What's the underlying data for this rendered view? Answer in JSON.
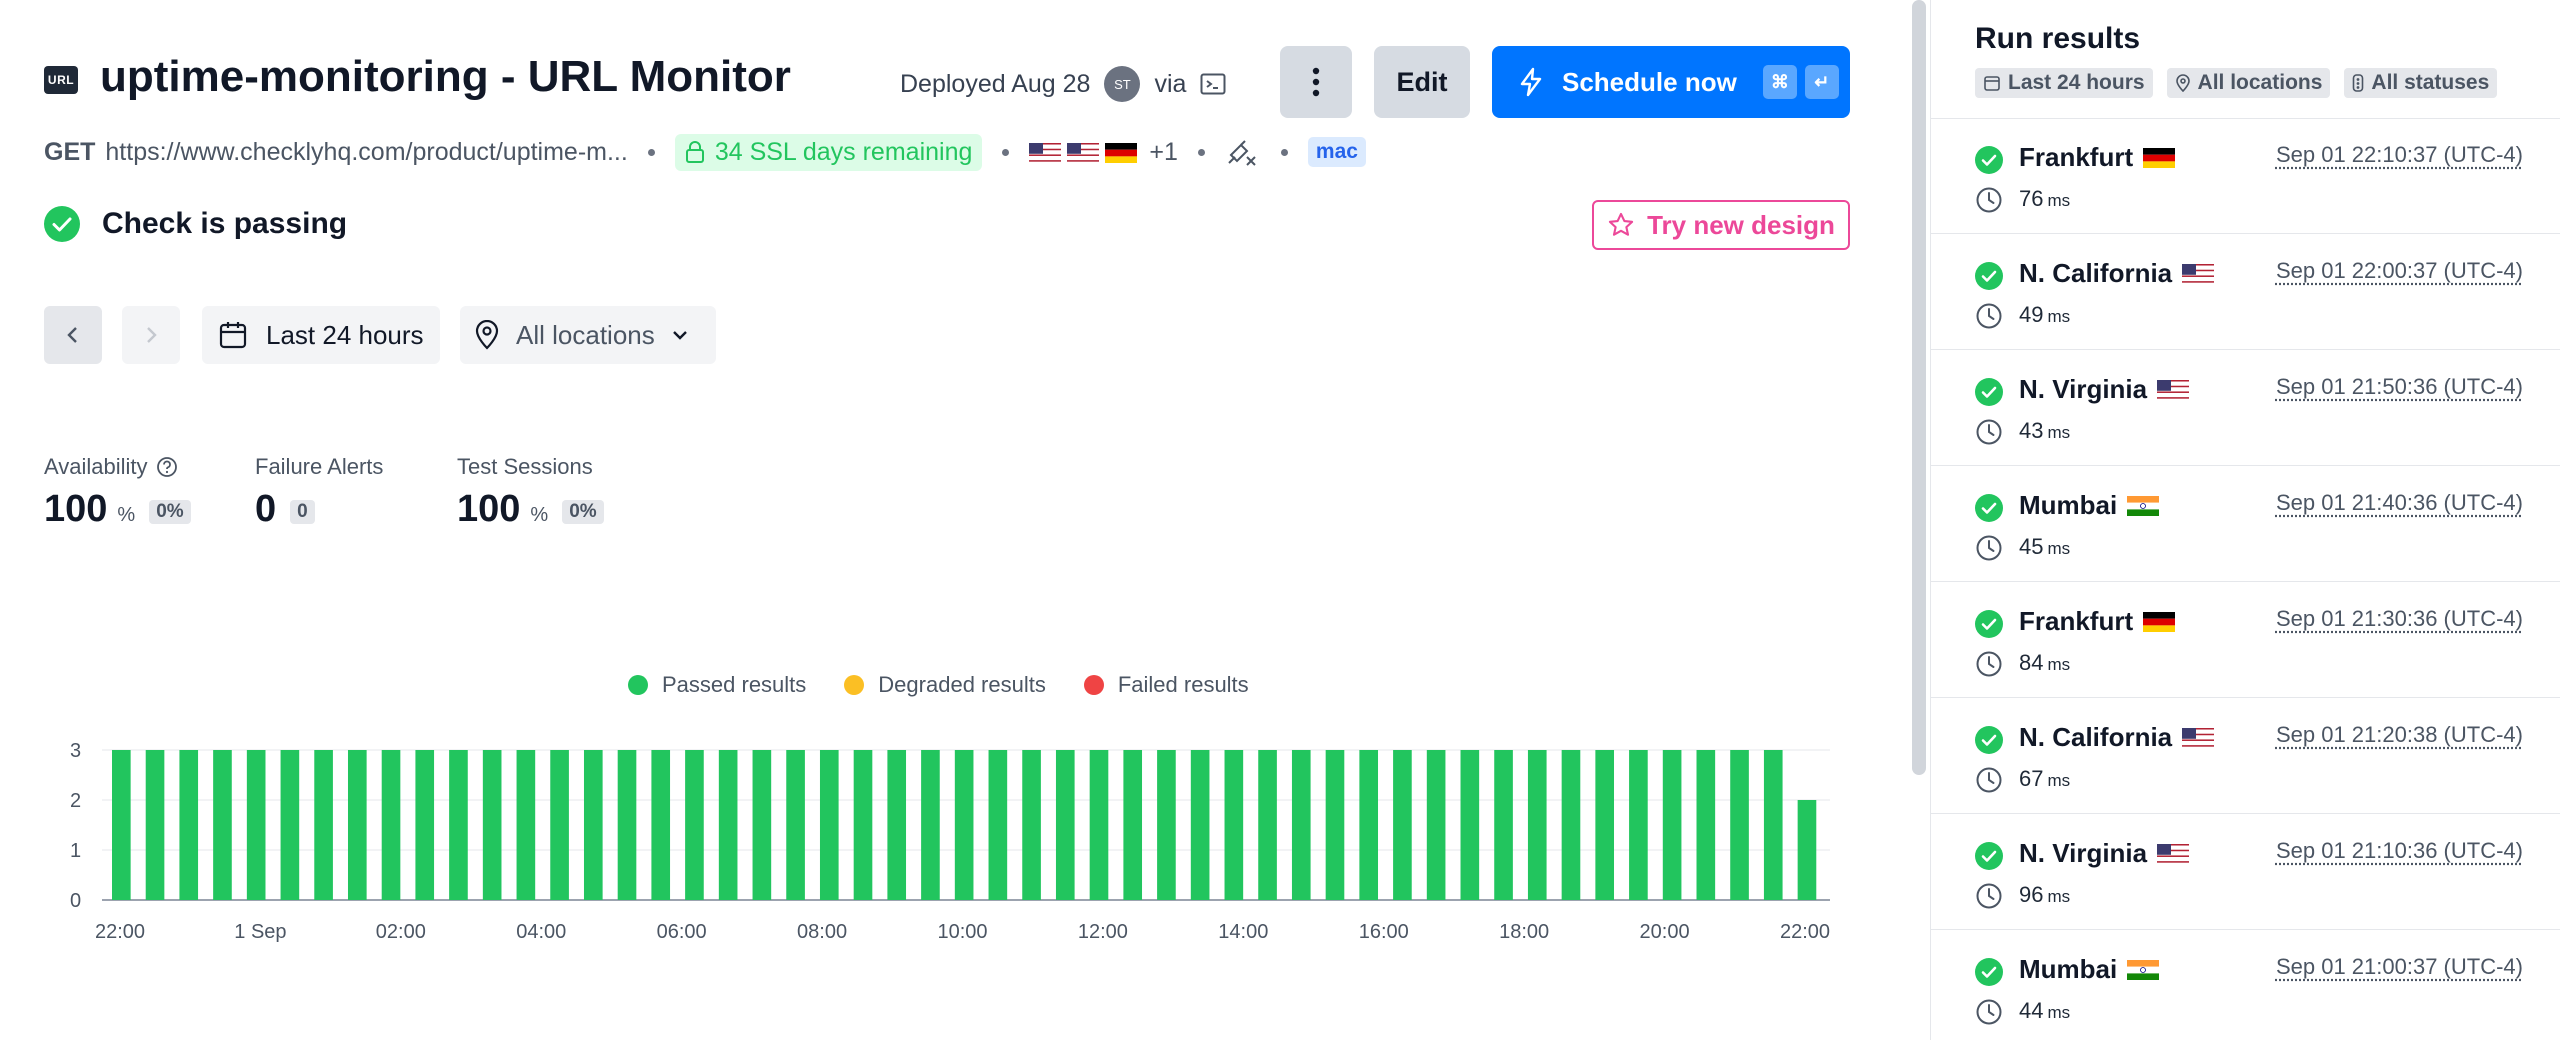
{
  "header": {
    "icon_label": "URL",
    "title": "uptime-monitoring - URL Monitor",
    "deployed": "Deployed Aug 28",
    "avatar_initials": "ST",
    "via": "via",
    "edit_label": "Edit",
    "schedule_label": "Schedule now",
    "kbd_cmd": "⌘",
    "kbd_enter": "↵",
    "try_new_design": "Try new design"
  },
  "meta": {
    "method": "GET",
    "url": "https://www.checklyhq.com/product/uptime-m...",
    "ssl": "34 SSL days remaining",
    "flags": [
      "us",
      "us",
      "de"
    ],
    "extra_locations": "+1",
    "runtime_badge": "mac"
  },
  "status": {
    "text": "Check is passing",
    "color": "#22c55e"
  },
  "filters": {
    "time_range": "Last 24 hours",
    "locations": "All locations"
  },
  "stats": [
    {
      "label": "Availability",
      "value": "100",
      "unit": "%",
      "chip": "0%",
      "has_help": true
    },
    {
      "label": "Failure Alerts",
      "value": "0",
      "unit": "",
      "chip": "0",
      "has_help": false
    },
    {
      "label": "Test Sessions",
      "value": "100",
      "unit": "%",
      "chip": "0%",
      "has_help": false
    }
  ],
  "legend": [
    {
      "label": "Passed results",
      "color": "#22c55e"
    },
    {
      "label": "Degraded results",
      "color": "#fbbf24"
    },
    {
      "label": "Failed results",
      "color": "#ef4444"
    }
  ],
  "chart_data": {
    "type": "bar",
    "y_ticks": [
      "0",
      "1",
      "2",
      "3"
    ],
    "ylim": [
      0,
      3
    ],
    "x_tick_labels": [
      "22:00",
      "1 Sep",
      "02:00",
      "04:00",
      "06:00",
      "08:00",
      "10:00",
      "12:00",
      "14:00",
      "16:00",
      "18:00",
      "20:00",
      "22:00"
    ],
    "series": [
      {
        "name": "Passed results",
        "color": "#22c55e",
        "values": [
          3,
          3,
          3,
          3,
          3,
          3,
          3,
          3,
          3,
          3,
          3,
          3,
          3,
          3,
          3,
          3,
          3,
          3,
          3,
          3,
          3,
          3,
          3,
          3,
          3,
          3,
          3,
          3,
          3,
          3,
          3,
          3,
          3,
          3,
          3,
          3,
          3,
          3,
          3,
          3,
          3,
          3,
          3,
          3,
          3,
          3,
          3,
          3,
          3,
          3,
          2
        ]
      }
    ],
    "grid": true
  },
  "panel": {
    "title": "Run results",
    "filter_time": "Last 24 hours",
    "filter_locations": "All locations",
    "filter_statuses": "All statuses",
    "runs": [
      {
        "location": "Frankfurt",
        "flag": "de",
        "time": "Sep 01 22:10:37 (UTC-4)",
        "duration": "76",
        "unit": "ms"
      },
      {
        "location": "N. California",
        "flag": "us",
        "time": "Sep 01 22:00:37 (UTC-4)",
        "duration": "49",
        "unit": "ms"
      },
      {
        "location": "N. Virginia",
        "flag": "us",
        "time": "Sep 01 21:50:36 (UTC-4)",
        "duration": "43",
        "unit": "ms"
      },
      {
        "location": "Mumbai",
        "flag": "in",
        "time": "Sep 01 21:40:36 (UTC-4)",
        "duration": "45",
        "unit": "ms"
      },
      {
        "location": "Frankfurt",
        "flag": "de",
        "time": "Sep 01 21:30:36 (UTC-4)",
        "duration": "84",
        "unit": "ms"
      },
      {
        "location": "N. California",
        "flag": "us",
        "time": "Sep 01 21:20:38 (UTC-4)",
        "duration": "67",
        "unit": "ms"
      },
      {
        "location": "N. Virginia",
        "flag": "us",
        "time": "Sep 01 21:10:36 (UTC-4)",
        "duration": "96",
        "unit": "ms"
      },
      {
        "location": "Mumbai",
        "flag": "in",
        "time": "Sep 01 21:00:37 (UTC-4)",
        "duration": "44",
        "unit": "ms"
      }
    ]
  }
}
